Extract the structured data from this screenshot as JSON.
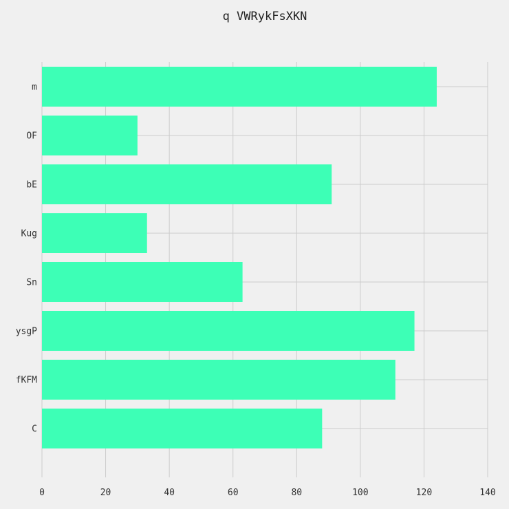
{
  "chart_data": {
    "type": "bar",
    "orientation": "horizontal",
    "title": "q VWRykFsXKN",
    "xlabel": "",
    "ylabel": "",
    "categories": [
      "m",
      "OF",
      "bE",
      "Kug",
      "Sn",
      "ysgP",
      "fKFM",
      "C"
    ],
    "values": [
      124,
      30,
      91,
      33,
      63,
      117,
      111,
      88
    ],
    "xlim": [
      0,
      140
    ],
    "xticks": [
      0,
      20,
      40,
      60,
      80,
      100,
      120,
      140
    ],
    "grid": true,
    "bar_color": "#3dffb6",
    "background": "#f0f0f0"
  }
}
